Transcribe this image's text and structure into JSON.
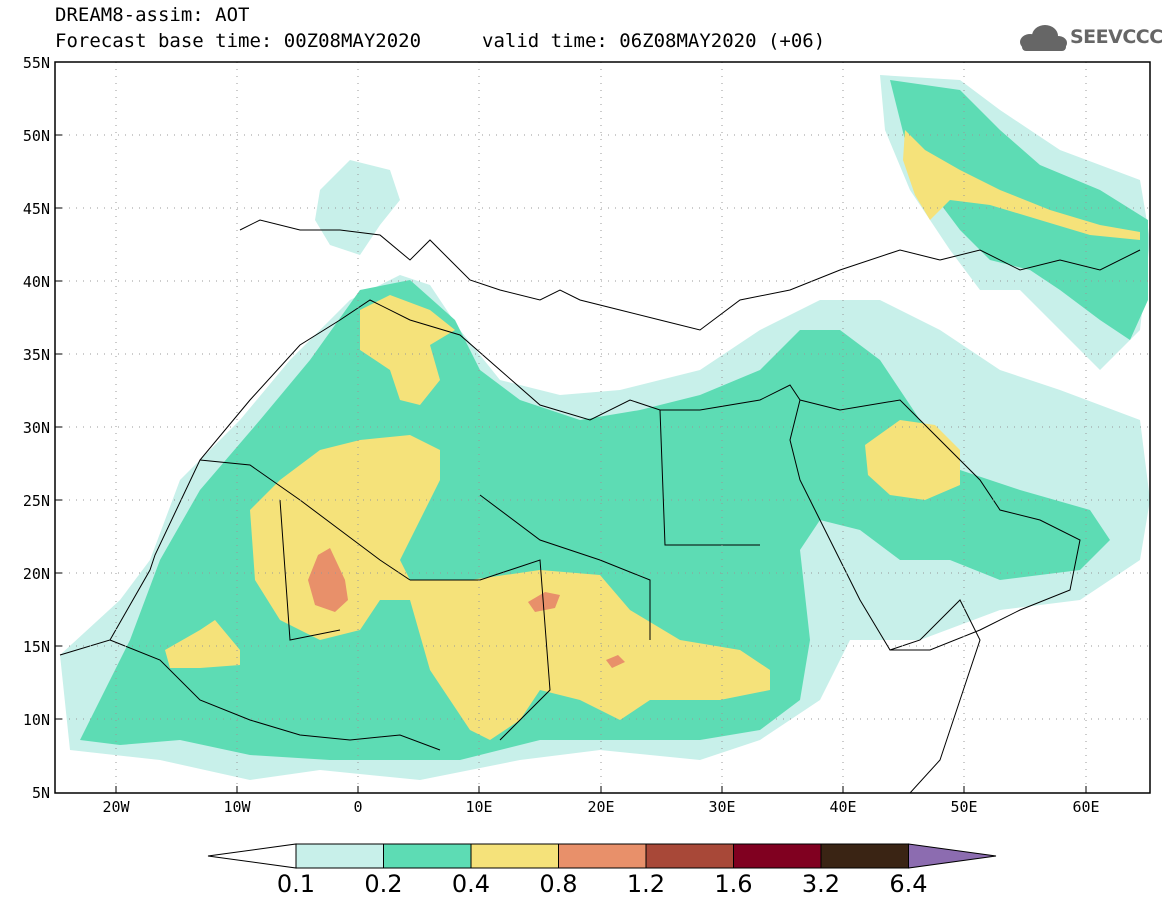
{
  "header": {
    "title_line1": "DREAM8-assim: AOT",
    "title_line2": "Forecast base time: 00Z08MAY2020",
    "valid_time": "valid time: 06Z08MAY2020 (+06)",
    "logo_text": "SEEVCCC"
  },
  "map": {
    "lat_labels": [
      "55N",
      "50N",
      "45N",
      "40N",
      "35N",
      "30N",
      "25N",
      "20N",
      "15N",
      "10N",
      "5N"
    ],
    "lon_labels": [
      "20W",
      "10W",
      "0",
      "10E",
      "20E",
      "30E",
      "40E",
      "50E",
      "60E"
    ],
    "variable": "AOT"
  },
  "colorbar": {
    "labels": [
      "0.1",
      "0.2",
      "0.4",
      "0.8",
      "1.2",
      "1.6",
      "3.2",
      "6.4"
    ],
    "colors": [
      "#ffffff",
      "#c8f0ea",
      "#5ddcb4",
      "#f5e27a",
      "#e8906a",
      "#a84838",
      "#800020",
      "#3a2414",
      "#8c6cb0"
    ]
  }
}
